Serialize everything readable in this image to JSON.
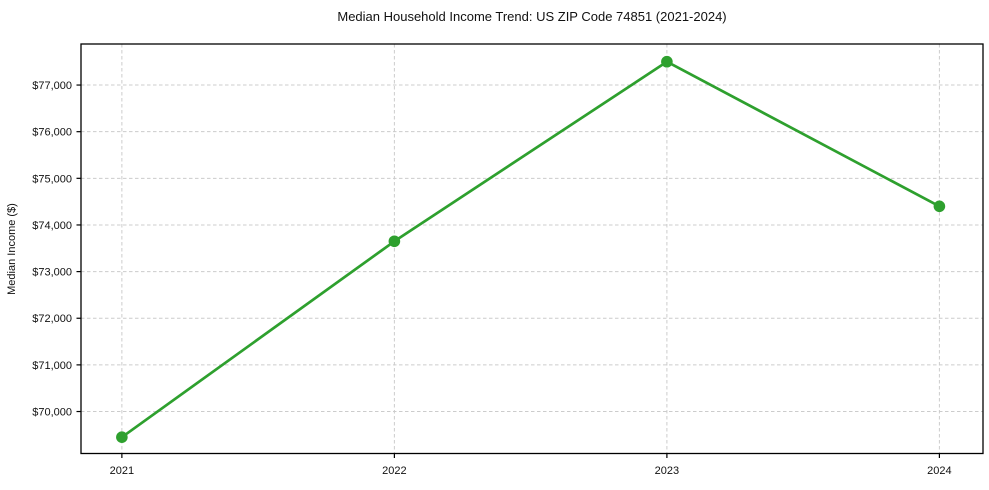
{
  "chart_data": {
    "type": "line",
    "title": "Median Household Income Trend: US ZIP Code 74851 (2021-2024)",
    "xlabel": "",
    "ylabel": "Median Income ($)",
    "x": [
      2021,
      2022,
      2023,
      2024
    ],
    "xtick_labels": [
      "2021",
      "2022",
      "2023",
      "2024"
    ],
    "values": [
      69450,
      73650,
      77500,
      74400
    ],
    "ytick_values": [
      70000,
      71000,
      72000,
      73000,
      74000,
      75000,
      76000,
      77000
    ],
    "ytick_labels": [
      "$70,000",
      "$71,000",
      "$72,000",
      "$73,000",
      "$74,000",
      "$75,000",
      "$76,000",
      "$77,000"
    ],
    "xlim": [
      2020.85,
      2024.16
    ],
    "ylim": [
      69100,
      77880
    ],
    "grid": true,
    "legend": "none",
    "line_color": "#2ea02e",
    "marker": "circle",
    "marker_radius": 5.8,
    "grid_color": "#cccccc",
    "spine_color": "#000000",
    "text_color": "#111111",
    "background": "#ffffff"
  }
}
